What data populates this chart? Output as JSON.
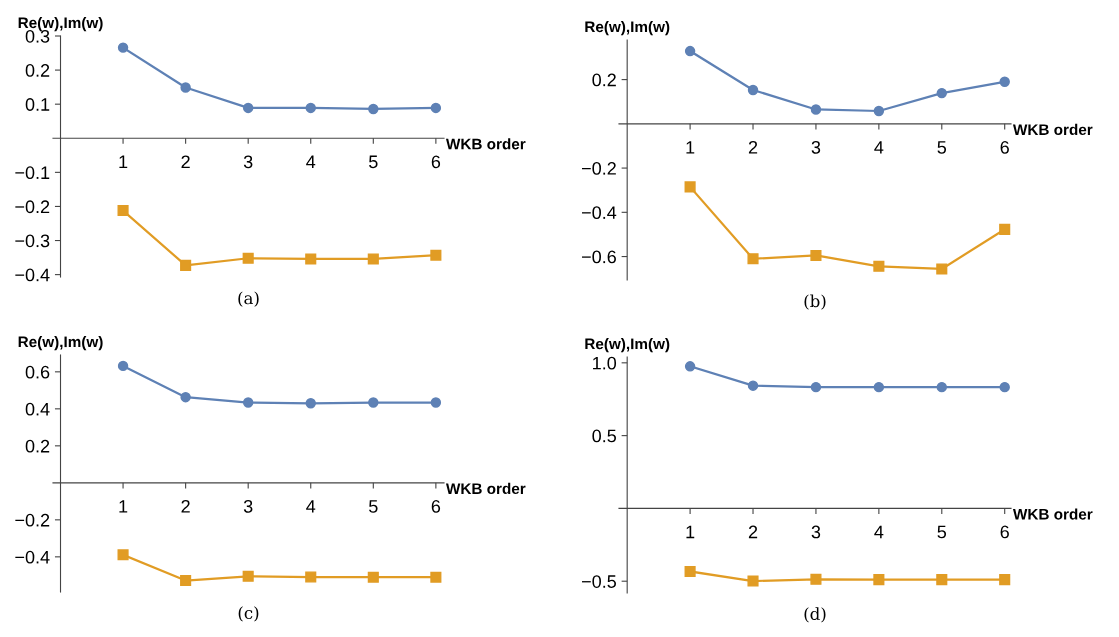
{
  "chart_data": [
    {
      "type": "line",
      "title": "(a)",
      "xlabel": "WKB order",
      "ylabel": "Re(w),Im(w)",
      "x": [
        1,
        2,
        3,
        4,
        5,
        6
      ],
      "xlim": [
        -0.12,
        6.13
      ],
      "ylim": [
        -0.407,
        0.3
      ],
      "xticks": [
        1,
        2,
        3,
        4,
        5,
        6
      ],
      "yticks": [
        {
          "value": -0.4,
          "label": "−0.4"
        },
        {
          "value": -0.3,
          "label": "−0.3"
        },
        {
          "value": -0.2,
          "label": "−0.2"
        },
        {
          "value": -0.1,
          "label": "−0.1"
        },
        0.1,
        0.2,
        0.3
      ],
      "series": [
        {
          "color": "#5e81b5",
          "marker": "circle",
          "values": [
            0.266,
            0.149,
            0.089,
            0.089,
            0.086,
            0.089
          ]
        },
        {
          "color": "#e19c24",
          "marker": "square",
          "values": [
            -0.212,
            -0.373,
            -0.352,
            -0.354,
            -0.354,
            -0.343
          ]
        }
      ]
    },
    {
      "type": "line",
      "title": "(b)",
      "xlabel": "WKB order",
      "ylabel": "Re(w),Im(w)",
      "x": [
        1,
        2,
        3,
        4,
        5,
        6
      ],
      "xlim": [
        -0.13,
        6.1
      ],
      "ylim": [
        -0.706,
        0.379
      ],
      "xticks": [
        1,
        2,
        3,
        4,
        5,
        6
      ],
      "yticks": [
        {
          "value": -0.6,
          "label": "−0.6"
        },
        {
          "value": -0.4,
          "label": "−0.4"
        },
        {
          "value": -0.2,
          "label": "−0.2"
        },
        0.2
      ],
      "series": [
        {
          "color": "#5e81b5",
          "marker": "circle",
          "values": [
            0.329,
            0.153,
            0.065,
            0.058,
            0.139,
            0.19
          ]
        },
        {
          "color": "#e19c24",
          "marker": "square",
          "values": [
            -0.285,
            -0.61,
            -0.595,
            -0.644,
            -0.656,
            -0.477
          ]
        }
      ]
    },
    {
      "type": "line",
      "title": "(c)",
      "xlabel": "WKB order",
      "ylabel": "Re(w),Im(w)",
      "x": [
        1,
        2,
        3,
        4,
        5,
        6
      ],
      "xlim": [
        -0.12,
        6.13
      ],
      "ylim": [
        -0.59,
        0.691
      ],
      "xticks": [
        1,
        2,
        3,
        4,
        5,
        6
      ],
      "yticks": [
        {
          "value": -0.4,
          "label": "−0.4"
        },
        {
          "value": -0.2,
          "label": "−0.2"
        },
        0.2,
        0.4,
        0.6
      ],
      "series": [
        {
          "color": "#5e81b5",
          "marker": "circle",
          "values": [
            0.632,
            0.463,
            0.434,
            0.43,
            0.434,
            0.434
          ]
        },
        {
          "color": "#e19c24",
          "marker": "square",
          "values": [
            -0.389,
            -0.528,
            -0.505,
            -0.509,
            -0.51,
            -0.51
          ]
        }
      ]
    },
    {
      "type": "line",
      "title": "(d)",
      "xlabel": "WKB order",
      "ylabel": "Re(w),Im(w)",
      "x": [
        1,
        2,
        3,
        4,
        5,
        6
      ],
      "xlim": [
        -0.13,
        6.1
      ],
      "ylim": [
        -0.581,
        1.04
      ],
      "xticks": [
        1,
        2,
        3,
        4,
        5,
        6
      ],
      "yticks": [
        {
          "value": -0.5,
          "label": "−0.5"
        },
        0.5,
        {
          "value": 1.0,
          "label": "1.0"
        }
      ],
      "series": [
        {
          "color": "#5e81b5",
          "marker": "circle",
          "values": [
            0.976,
            0.843,
            0.833,
            0.833,
            0.833,
            0.833
          ]
        },
        {
          "color": "#e19c24",
          "marker": "square",
          "values": [
            -0.433,
            -0.499,
            -0.487,
            -0.489,
            -0.489,
            -0.489
          ]
        }
      ]
    }
  ]
}
